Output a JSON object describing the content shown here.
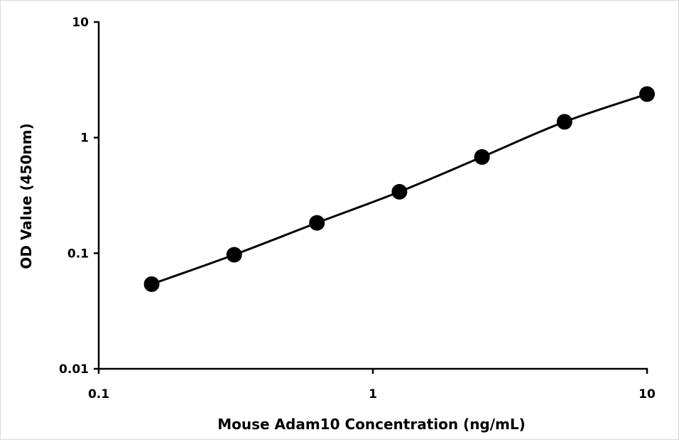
{
  "chart_data": {
    "type": "scatter",
    "xscale": "log",
    "yscale": "log",
    "xlabel": "Mouse Adam10 Concentration (ng/mL)",
    "ylabel": "OD Value (450nm)",
    "xlim": [
      0.1,
      10
    ],
    "ylim": [
      0.01,
      10
    ],
    "xticks": [
      "0.1",
      "1",
      "10"
    ],
    "yticks": [
      "0.01",
      "0.1",
      "1",
      "10"
    ],
    "grid": false,
    "legend": "none",
    "line": "smooth",
    "series": [
      {
        "x": [
          0.156,
          0.312,
          0.625,
          1.25,
          2.5,
          5,
          10
        ],
        "y": [
          0.054,
          0.097,
          0.183,
          0.34,
          0.68,
          1.37,
          2.38
        ]
      }
    ],
    "colors": {
      "marker": "#000000",
      "line": "#000000",
      "axis": "#000000"
    }
  }
}
